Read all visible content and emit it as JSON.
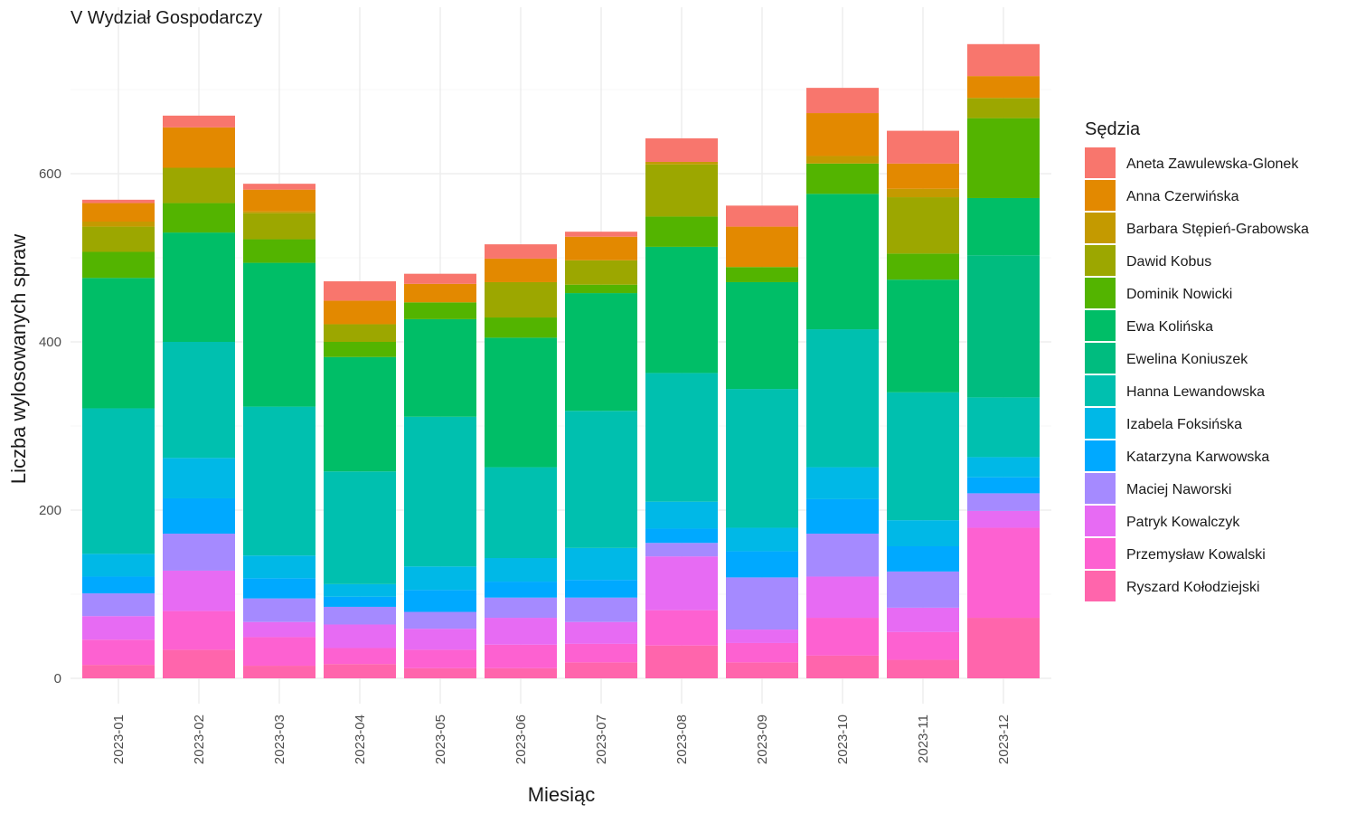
{
  "chart_data": {
    "type": "bar",
    "stacked": true,
    "title": "V Wydział Gospodarczy",
    "xlabel": "Miesiąc",
    "ylabel": "Liczba wylosowanych spraw",
    "legend_title": "Sędzia",
    "legend_position": "right",
    "grid": true,
    "ylim": [
      0,
      760
    ],
    "yticks": [
      0,
      200,
      400,
      600
    ],
    "categories": [
      "2023-01",
      "2023-02",
      "2023-03",
      "2023-04",
      "2023-05",
      "2023-06",
      "2023-07",
      "2023-08",
      "2023-09",
      "2023-10",
      "2023-11",
      "2023-12"
    ],
    "series": [
      {
        "name": "Ryszard Kołodziejski",
        "color": "#FF65AC",
        "values": [
          16,
          34,
          15,
          17,
          12,
          12,
          19,
          39,
          19,
          27,
          22,
          72
        ]
      },
      {
        "name": "Przemysław Kowalski",
        "color": "#FD61D1",
        "values": [
          30,
          46,
          34,
          19,
          22,
          28,
          22,
          42,
          23,
          45,
          33,
          107
        ]
      },
      {
        "name": "Patryk Kowalczyk",
        "color": "#E76BF3",
        "values": [
          28,
          48,
          18,
          28,
          25,
          32,
          26,
          64,
          16,
          49,
          29,
          20
        ]
      },
      {
        "name": "Maciej Naworski",
        "color": "#A58AFF",
        "values": [
          27,
          44,
          28,
          21,
          20,
          24,
          29,
          16,
          62,
          51,
          43,
          21
        ]
      },
      {
        "name": "Katarzyna Karwowska",
        "color": "#00A9FF",
        "values": [
          20,
          42,
          24,
          12,
          26,
          19,
          21,
          17,
          31,
          41,
          30,
          19
        ]
      },
      {
        "name": "Izabela Foksińska",
        "color": "#00B8E7",
        "values": [
          27,
          48,
          27,
          15,
          28,
          28,
          38,
          32,
          28,
          38,
          31,
          24
        ]
      },
      {
        "name": "Hanna Lewandowska",
        "color": "#00C0AF",
        "values": [
          173,
          138,
          177,
          134,
          178,
          108,
          163,
          153,
          165,
          164,
          152,
          71
        ]
      },
      {
        "name": "Ewelina Koniuszek",
        "color": "#00BC7F",
        "values": [
          0,
          0,
          0,
          0,
          0,
          0,
          0,
          0,
          0,
          0,
          0,
          169
        ]
      },
      {
        "name": "Ewa Kolińska",
        "color": "#00BE67",
        "values": [
          155,
          130,
          171,
          136,
          116,
          154,
          140,
          150,
          127,
          161,
          134,
          68
        ]
      },
      {
        "name": "Dominik Nowicki",
        "color": "#53B400",
        "values": [
          31,
          35,
          28,
          18,
          20,
          24,
          10,
          36,
          18,
          36,
          31,
          95
        ]
      },
      {
        "name": "Dawid Kobus",
        "color": "#9CA700",
        "values": [
          30,
          42,
          31,
          21,
          0,
          42,
          29,
          62,
          0,
          0,
          67,
          24
        ]
      },
      {
        "name": "Barbara Stępień-Grabowska",
        "color": "#C49A00",
        "values": [
          6,
          0,
          2,
          0,
          0,
          0,
          0,
          3,
          0,
          9,
          10,
          0
        ]
      },
      {
        "name": "Anna Czerwińska",
        "color": "#E38900",
        "values": [
          22,
          48,
          26,
          28,
          22,
          28,
          28,
          0,
          48,
          51,
          30,
          26
        ]
      },
      {
        "name": "Aneta Zawulewska-Glonek",
        "color": "#F8766D",
        "values": [
          4,
          14,
          7,
          23,
          12,
          17,
          6,
          28,
          25,
          30,
          39,
          38
        ]
      }
    ]
  }
}
